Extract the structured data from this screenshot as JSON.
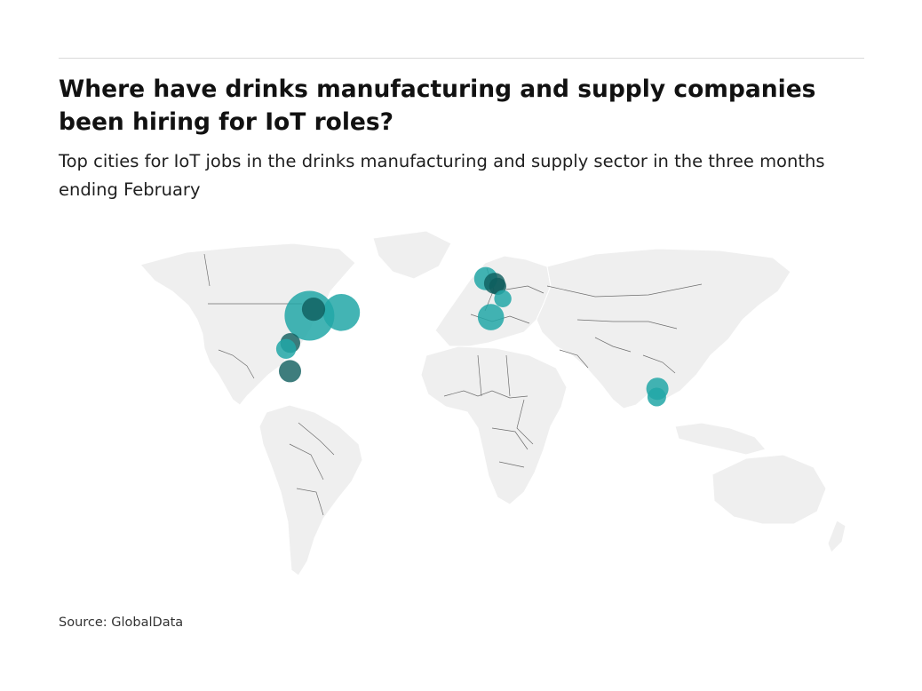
{
  "title": "Where have drinks manufacturing and supply companies been hiring for IoT roles?",
  "subtitle": "Top cities for IoT jobs in the drinks manufacturing and supply sector in the three months ending February",
  "source": "Source: GlobalData",
  "colors": {
    "bubble": "#22a7a7",
    "bubble_dark": "#0e5c5c",
    "land": "#efefef",
    "border": "#6e6e6e"
  },
  "bubbles": [
    {
      "lon": -89.6,
      "lat": 39.5,
      "size": 1.0
    },
    {
      "lon": -87.6,
      "lat": 41.9,
      "size": 0.22,
      "dark": true
    },
    {
      "lon": -74.0,
      "lat": 40.7,
      "size": 0.55
    },
    {
      "lon": -99.0,
      "lat": 29.6,
      "size": 0.16,
      "dark": true
    },
    {
      "lon": -101.0,
      "lat": 27.5,
      "size": 0.16
    },
    {
      "lon": -99.1,
      "lat": 19.4,
      "size": 0.2,
      "dark": true
    },
    {
      "lon": -3.5,
      "lat": 53.0,
      "size": 0.22
    },
    {
      "lon": 0.8,
      "lat": 51.3,
      "size": 0.18,
      "dark": true
    },
    {
      "lon": 2.3,
      "lat": 50.2,
      "size": 0.12,
      "dark": true
    },
    {
      "lon": 4.8,
      "lat": 45.7,
      "size": 0.12
    },
    {
      "lon": -1.0,
      "lat": 39.0,
      "size": 0.28
    },
    {
      "lon": 80.3,
      "lat": 13.0,
      "size": 0.2
    },
    {
      "lon": 80.0,
      "lat": 10.0,
      "size": 0.14
    }
  ]
}
